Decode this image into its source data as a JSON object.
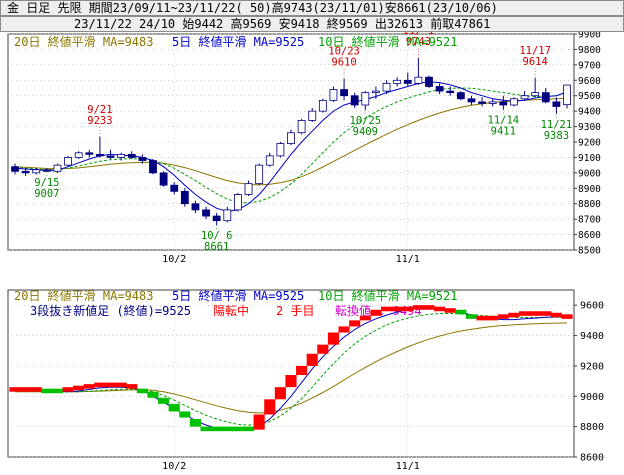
{
  "header": {
    "line1": "金 日足 先限 期間23/09/11~23/11/22( 50)高9743(23/11/01)安8661(23/10/06)",
    "line2": "23/11/22 24/10 始9442 高9569 安9418 終9569 出32613 前取47861"
  },
  "colors": {
    "ma20": "#8b7500",
    "ma5": "#0000cc",
    "ma10": "#00a000",
    "up_candle": "#ffffff",
    "down_candle": "#000080",
    "label_high": "#cc0000",
    "label_low": "#008800",
    "brick_up": "#ff0000",
    "brick_down": "#00c000",
    "grid": "#b0b0b0"
  },
  "chart_data": [
    {
      "type": "candlestick",
      "legend": [
        {
          "text": "20日 終値平滑 MA=9483",
          "series": "ma20"
        },
        {
          "text": "5日 終値平滑 MA=9525",
          "series": "ma5"
        },
        {
          "text": "10日 終値平滑 MA=9521",
          "series": "ma10"
        }
      ],
      "ylim": [
        8500,
        9900
      ],
      "y_ticks": [
        8500,
        8600,
        8700,
        8800,
        8900,
        9000,
        9100,
        9200,
        9300,
        9400,
        9500,
        9600,
        9700,
        9800,
        9900
      ],
      "x_ticks": [
        {
          "index": 15,
          "label": "10/2"
        },
        {
          "index": 37,
          "label": "11/1"
        }
      ],
      "annotations": [
        {
          "index": 3,
          "date": "9/15",
          "value": 9007,
          "kind": "low",
          "label": "9/15\n9007"
        },
        {
          "index": 8,
          "date": "9/21",
          "value": 9233,
          "kind": "high",
          "label": "9/21\n9233"
        },
        {
          "index": 19,
          "date": "10/6",
          "value": 8661,
          "kind": "low",
          "label": "10/ 6\n8661"
        },
        {
          "index": 31,
          "date": "10/23",
          "value": 9610,
          "kind": "high",
          "label": "10/23\n9610"
        },
        {
          "index": 33,
          "date": "10/25",
          "value": 9409,
          "kind": "low",
          "label": "10/25\n9409"
        },
        {
          "index": 38,
          "date": "11/1",
          "value": 9743,
          "kind": "high",
          "label": "11/ 1\n9743"
        },
        {
          "index": 46,
          "date": "11/14",
          "value": 9411,
          "kind": "low",
          "label": "11/14\n9411"
        },
        {
          "index": 49,
          "date": "11/17",
          "value": 9614,
          "kind": "high",
          "label": "11/17\n9614"
        },
        {
          "index": 51,
          "date": "11/21",
          "value": 9383,
          "kind": "low",
          "label": "11/21\n9383"
        }
      ],
      "ohlc": [
        [
          9040,
          9060,
          8990,
          9010
        ],
        [
          9010,
          9030,
          8980,
          9000
        ],
        [
          9000,
          9030,
          8990,
          9020
        ],
        [
          9020,
          9030,
          9007,
          9010
        ],
        [
          9010,
          9060,
          9000,
          9050
        ],
        [
          9050,
          9110,
          9040,
          9100
        ],
        [
          9100,
          9140,
          9090,
          9130
        ],
        [
          9130,
          9150,
          9100,
          9120
        ],
        [
          9120,
          9233,
          9100,
          9110
        ],
        [
          9110,
          9150,
          9090,
          9100
        ],
        [
          9100,
          9130,
          9080,
          9120
        ],
        [
          9120,
          9140,
          9090,
          9100
        ],
        [
          9100,
          9120,
          9060,
          9080
        ],
        [
          9080,
          9090,
          8990,
          9000
        ],
        [
          9000,
          9010,
          8910,
          8920
        ],
        [
          8920,
          8940,
          8860,
          8880
        ],
        [
          8880,
          8900,
          8780,
          8800
        ],
        [
          8800,
          8820,
          8740,
          8760
        ],
        [
          8760,
          8780,
          8700,
          8720
        ],
        [
          8720,
          8740,
          8661,
          8690
        ],
        [
          8690,
          8780,
          8680,
          8760
        ],
        [
          8760,
          8870,
          8750,
          8860
        ],
        [
          8860,
          8950,
          8850,
          8930
        ],
        [
          8930,
          9060,
          8920,
          9050
        ],
        [
          9050,
          9130,
          9040,
          9110
        ],
        [
          9110,
          9200,
          9100,
          9190
        ],
        [
          9190,
          9280,
          9180,
          9260
        ],
        [
          9260,
          9350,
          9250,
          9340
        ],
        [
          9340,
          9420,
          9330,
          9400
        ],
        [
          9400,
          9480,
          9390,
          9470
        ],
        [
          9470,
          9560,
          9460,
          9540
        ],
        [
          9540,
          9610,
          9470,
          9500
        ],
        [
          9500,
          9520,
          9420,
          9440
        ],
        [
          9440,
          9530,
          9409,
          9520
        ],
        [
          9520,
          9560,
          9480,
          9530
        ],
        [
          9530,
          9600,
          9510,
          9580
        ],
        [
          9580,
          9620,
          9560,
          9600
        ],
        [
          9600,
          9650,
          9560,
          9580
        ],
        [
          9580,
          9743,
          9570,
          9620
        ],
        [
          9620,
          9630,
          9550,
          9560
        ],
        [
          9560,
          9580,
          9510,
          9530
        ],
        [
          9530,
          9560,
          9500,
          9520
        ],
        [
          9520,
          9530,
          9470,
          9480
        ],
        [
          9480,
          9500,
          9440,
          9460
        ],
        [
          9460,
          9490,
          9430,
          9450
        ],
        [
          9450,
          9480,
          9430,
          9460
        ],
        [
          9460,
          9500,
          9411,
          9440
        ],
        [
          9440,
          9490,
          9430,
          9480
        ],
        [
          9480,
          9530,
          9470,
          9500
        ],
        [
          9500,
          9614,
          9490,
          9520
        ],
        [
          9520,
          9550,
          9450,
          9460
        ],
        [
          9460,
          9490,
          9383,
          9430
        ],
        [
          9442,
          9569,
          9418,
          9569
        ]
      ],
      "ma5": [
        9030,
        9025,
        9020,
        9015,
        9018,
        9040,
        9065,
        9090,
        9110,
        9120,
        9115,
        9110,
        9100,
        9080,
        9040,
        8985,
        8920,
        8860,
        8810,
        8770,
        8750,
        8760,
        8800,
        8860,
        8940,
        9030,
        9120,
        9200,
        9270,
        9340,
        9400,
        9440,
        9460,
        9475,
        9495,
        9520,
        9540,
        9560,
        9580,
        9590,
        9585,
        9570,
        9550,
        9520,
        9500,
        9480,
        9470,
        9465,
        9470,
        9485,
        9495,
        9500,
        9525
      ],
      "ma10": [
        9035,
        9030,
        9025,
        9020,
        9020,
        9030,
        9045,
        9060,
        9075,
        9085,
        9090,
        9092,
        9090,
        9080,
        9060,
        9030,
        8990,
        8950,
        8905,
        8865,
        8830,
        8810,
        8805,
        8815,
        8840,
        8880,
        8930,
        8990,
        9060,
        9130,
        9200,
        9260,
        9310,
        9355,
        9395,
        9430,
        9460,
        9485,
        9505,
        9525,
        9540,
        9548,
        9550,
        9548,
        9540,
        9530,
        9520,
        9510,
        9500,
        9495,
        9495,
        9500,
        9521
      ],
      "ma20": [
        9040,
        9036,
        9032,
        9028,
        9026,
        9028,
        9032,
        9040,
        9048,
        9056,
        9062,
        9066,
        9068,
        9068,
        9062,
        9050,
        9034,
        9014,
        8992,
        8970,
        8950,
        8935,
        8925,
        8922,
        8926,
        8936,
        8952,
        8975,
        9004,
        9038,
        9074,
        9110,
        9146,
        9182,
        9216,
        9250,
        9283,
        9313,
        9340,
        9365,
        9388,
        9408,
        9424,
        9438,
        9448,
        9456,
        9462,
        9466,
        9470,
        9474,
        9477,
        9480,
        9483
      ]
    },
    {
      "type": "three-line-break",
      "legend": [
        {
          "text": "20日 終値平滑 MA=9483",
          "series": "ma20"
        },
        {
          "text": "5日 終値平滑 MA=9525",
          "series": "ma5"
        },
        {
          "text": "10日 終値平滑 MA=9521",
          "series": "ma10"
        }
      ],
      "info": {
        "title": "3段抜き新値足 (終値)=9525",
        "status": "陽転中",
        "count": "2 手目",
        "reversal": "転換値 : 9494"
      },
      "ylim": [
        8600,
        9700
      ],
      "y_ticks": [
        8600,
        8800,
        9000,
        9200,
        9400,
        9600
      ],
      "x_ticks": [
        {
          "index": 15,
          "label": "10/2"
        },
        {
          "index": 37,
          "label": "11/1"
        }
      ],
      "bricks": [
        [
          9030,
          9060,
          "up"
        ],
        [
          9030,
          9060,
          "up"
        ],
        [
          9030,
          9060,
          "up"
        ],
        [
          9020,
          9050,
          "down"
        ],
        [
          9020,
          9050,
          "down"
        ],
        [
          9030,
          9060,
          "up"
        ],
        [
          9040,
          9070,
          "up"
        ],
        [
          9050,
          9080,
          "up"
        ],
        [
          9060,
          9090,
          "up"
        ],
        [
          9060,
          9090,
          "up"
        ],
        [
          9060,
          9090,
          "up"
        ],
        [
          9050,
          9080,
          "up"
        ],
        [
          9020,
          9050,
          "down"
        ],
        [
          8990,
          9030,
          "down"
        ],
        [
          8950,
          8990,
          "down"
        ],
        [
          8900,
          8950,
          "down"
        ],
        [
          8860,
          8900,
          "down"
        ],
        [
          8800,
          8850,
          "down"
        ],
        [
          8770,
          8800,
          "down"
        ],
        [
          8770,
          8800,
          "down"
        ],
        [
          8770,
          8800,
          "down"
        ],
        [
          8770,
          8800,
          "down"
        ],
        [
          8770,
          8800,
          "down"
        ],
        [
          8780,
          8880,
          "up"
        ],
        [
          8880,
          8980,
          "up"
        ],
        [
          8980,
          9060,
          "up"
        ],
        [
          9060,
          9140,
          "up"
        ],
        [
          9140,
          9200,
          "up"
        ],
        [
          9200,
          9280,
          "up"
        ],
        [
          9280,
          9340,
          "up"
        ],
        [
          9340,
          9420,
          "up"
        ],
        [
          9420,
          9460,
          "up"
        ],
        [
          9460,
          9500,
          "up"
        ],
        [
          9500,
          9530,
          "up"
        ],
        [
          9530,
          9570,
          "up"
        ],
        [
          9560,
          9590,
          "up"
        ],
        [
          9560,
          9590,
          "up"
        ],
        [
          9560,
          9590,
          "up"
        ],
        [
          9570,
          9600,
          "up"
        ],
        [
          9570,
          9600,
          "up"
        ],
        [
          9560,
          9590,
          "up"
        ],
        [
          9550,
          9580,
          "up"
        ],
        [
          9540,
          9570,
          "down"
        ],
        [
          9510,
          9540,
          "down"
        ],
        [
          9500,
          9530,
          "up"
        ],
        [
          9500,
          9530,
          "up"
        ],
        [
          9510,
          9540,
          "up"
        ],
        [
          9520,
          9550,
          "up"
        ],
        [
          9530,
          9560,
          "up"
        ],
        [
          9530,
          9560,
          "up"
        ],
        [
          9530,
          9560,
          "up"
        ],
        [
          9520,
          9550,
          "up"
        ],
        [
          9510,
          9540,
          "up"
        ]
      ],
      "ma5": [
        9040,
        9038,
        9036,
        9034,
        9032,
        9030,
        9035,
        9045,
        9055,
        9060,
        9060,
        9055,
        9040,
        9000,
        8960,
        8920,
        8880,
        8840,
        8810,
        8790,
        8775,
        8775,
        8780,
        8800,
        8850,
        8920,
        9000,
        9090,
        9180,
        9260,
        9330,
        9390,
        9440,
        9480,
        9510,
        9535,
        9555,
        9570,
        9580,
        9585,
        9580,
        9570,
        9555,
        9535,
        9520,
        9510,
        9505,
        9505,
        9510,
        9515,
        9520,
        9522,
        9525
      ],
      "ma10": [
        9035,
        9034,
        9033,
        9032,
        9031,
        9030,
        9030,
        9033,
        9038,
        9043,
        9046,
        9048,
        9045,
        9030,
        9005,
        8975,
        8940,
        8905,
        8875,
        8850,
        8830,
        8815,
        8810,
        8815,
        8835,
        8870,
        8920,
        8985,
        9060,
        9140,
        9215,
        9285,
        9345,
        9395,
        9435,
        9470,
        9495,
        9515,
        9530,
        9540,
        9545,
        9545,
        9542,
        9538,
        9532,
        9527,
        9523,
        9520,
        9519,
        9519,
        9520,
        9520,
        9521
      ],
      "ma20": [
        9030,
        9030,
        9030,
        9030,
        9030,
        9030,
        9030,
        9032,
        9034,
        9037,
        9040,
        9042,
        9043,
        9040,
        9030,
        9015,
        8997,
        8977,
        8957,
        8937,
        8920,
        8905,
        8895,
        8890,
        8895,
        8908,
        8928,
        8955,
        8988,
        9025,
        9065,
        9108,
        9150,
        9190,
        9228,
        9263,
        9295,
        9325,
        9352,
        9376,
        9397,
        9415,
        9430,
        9442,
        9452,
        9460,
        9466,
        9471,
        9475,
        9478,
        9480,
        9482,
        9483
      ]
    }
  ]
}
